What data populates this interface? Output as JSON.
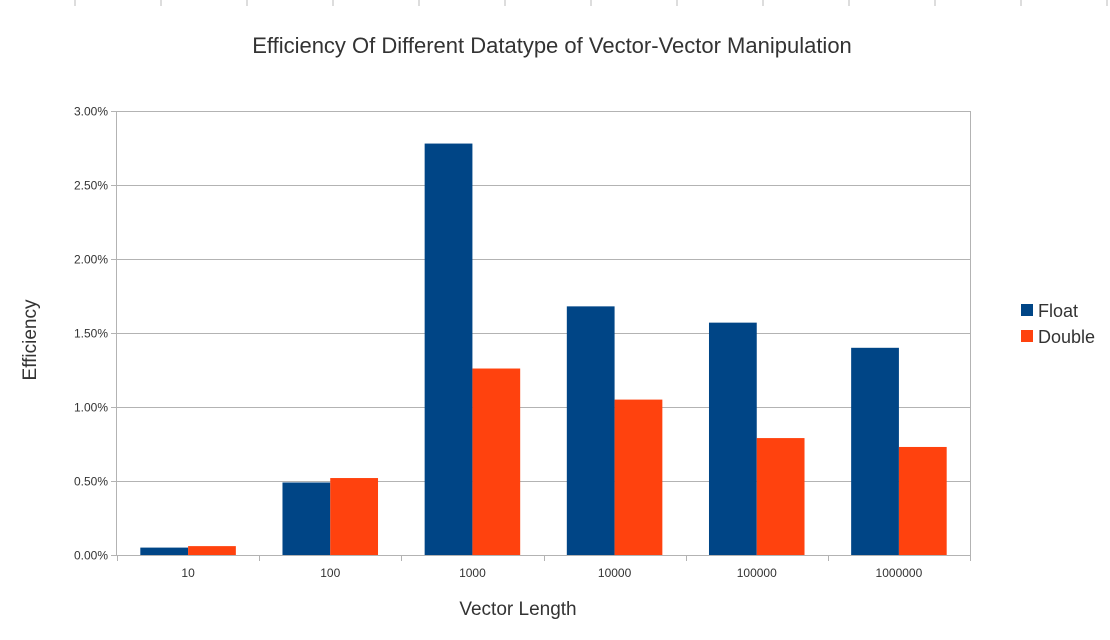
{
  "chart_data": {
    "type": "bar",
    "title": "Efficiency Of Different Datatype of Vector-Vector Manipulation",
    "xlabel": "Vector Length",
    "ylabel": "Efficiency",
    "categories": [
      "10",
      "100",
      "1000",
      "10000",
      "100000",
      "1000000"
    ],
    "series": [
      {
        "name": "Float",
        "values": [
          0.05,
          0.49,
          2.78,
          1.68,
          1.57,
          1.4
        ],
        "color": "#004586"
      },
      {
        "name": "Double",
        "values": [
          0.06,
          0.52,
          1.26,
          1.05,
          0.79,
          0.73
        ],
        "color": "#ff420e"
      }
    ],
    "ylim": [
      0,
      3
    ],
    "yticks": [
      0,
      0.5,
      1,
      1.5,
      2,
      2.5,
      3
    ],
    "ytick_labels": [
      "0.00%",
      "0.50%",
      "1.00%",
      "1.50%",
      "2.00%",
      "2.50%",
      "3.00%"
    ],
    "grid": true,
    "legend_position": "right"
  }
}
